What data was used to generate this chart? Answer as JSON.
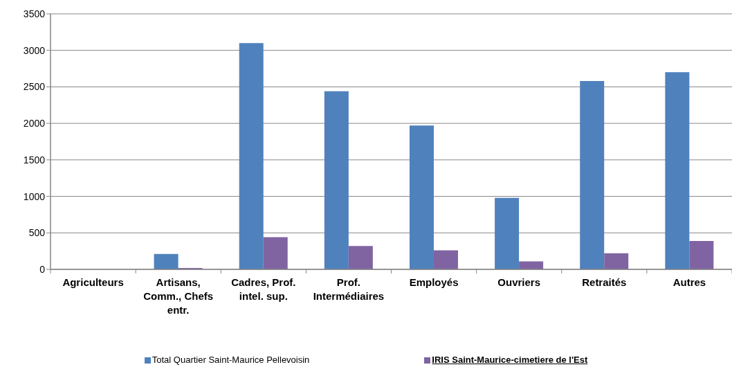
{
  "chart_data": {
    "type": "bar",
    "categories": [
      "Agriculteurs",
      "Artisans, Comm., Chefs entr.",
      "Cadres, Prof. intel. sup.",
      "Prof. Intermédiaires",
      "Employés",
      "Ouvriers",
      "Retraités",
      "Autres"
    ],
    "series": [
      {
        "name": "Total Quartier Saint-Maurice Pellevoisin",
        "color": "#4f81bd",
        "values": [
          0,
          210,
          3100,
          2440,
          1970,
          980,
          2580,
          2700
        ]
      },
      {
        "name": "IRIS Saint-Maurice-cimetiere de l'Est",
        "color": "#8064a2",
        "values": [
          0,
          20,
          440,
          320,
          260,
          110,
          220,
          390
        ]
      }
    ],
    "ylim": [
      0,
      3500
    ],
    "yticks": [
      0,
      500,
      1000,
      1500,
      2000,
      2500,
      3000,
      3500
    ],
    "grid": "y",
    "legend": "bottom"
  }
}
